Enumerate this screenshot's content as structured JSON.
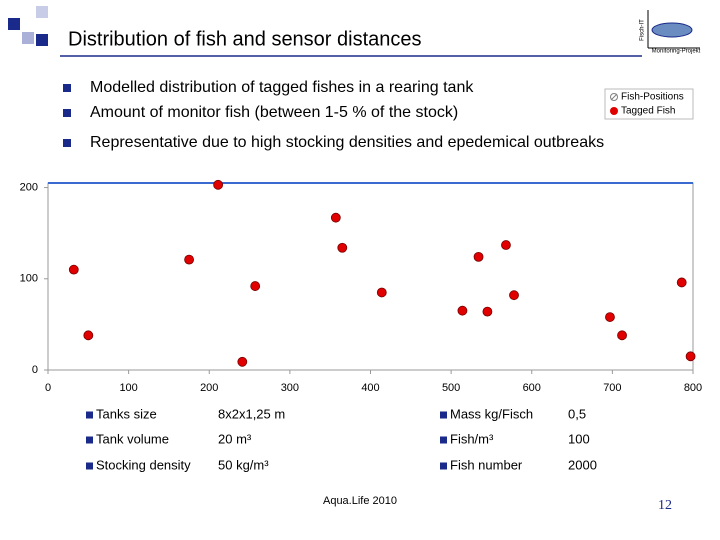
{
  "header": {
    "title": "Distribution of fish and sensor distances",
    "logo_label": "Monitoring-Projekt",
    "logo_side": "Fisch-IT"
  },
  "bullets": [
    "Modelled distribution of tagged fishes in a rearing tank",
    "Amount of monitor fish (between 1-5 % of the stock)",
    "Representative due to high stocking densities and epedemical outbreaks"
  ],
  "chart_data": {
    "type": "scatter",
    "series": [
      {
        "name": "Fish-Positions",
        "color": "#808080",
        "x": [],
        "values": []
      },
      {
        "name": "Tagged Fish",
        "color": "#e00000",
        "x": [
          211,
          357,
          365,
          568,
          534,
          175,
          32,
          257,
          414,
          578,
          786,
          514,
          545,
          697,
          712,
          50,
          241,
          797
        ],
        "values": [
          203,
          167,
          134,
          137,
          124,
          121,
          110,
          92,
          85,
          82,
          96,
          65,
          64,
          58,
          38,
          38,
          9,
          15
        ]
      }
    ],
    "xlim": [
      0,
      800
    ],
    "xticks": [
      0,
      100,
      200,
      300,
      400,
      500,
      600,
      700,
      800
    ],
    "ylim": [
      0,
      205
    ],
    "yticks": [
      0,
      100,
      200
    ]
  },
  "table": {
    "rows": [
      [
        "Tanks size",
        "8x2x1,25 m",
        "Mass kg/Fisch",
        "0,5"
      ],
      [
        "Tank volume",
        "20 m³",
        "Fish/m³",
        "100"
      ],
      [
        "Stocking density",
        "50 kg/m³",
        "Fish number",
        "2000"
      ]
    ]
  },
  "footer": {
    "source": "Aqua.Life 2010",
    "page": "12"
  }
}
